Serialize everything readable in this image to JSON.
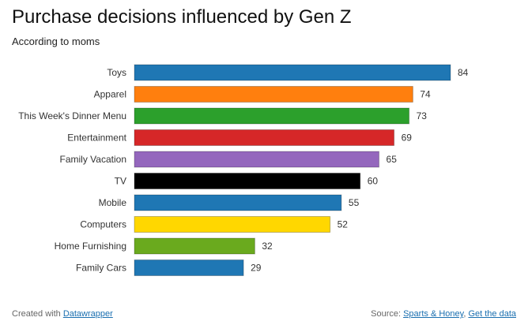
{
  "header": {
    "title": "Purchase decisions influenced by Gen Z",
    "subtitle": "According to moms"
  },
  "footer": {
    "created_prefix": "Created with ",
    "created_link": "Datawrapper",
    "source_prefix": "Source: ",
    "source_link": "Sparts & Honey",
    "separator": ", ",
    "data_link": "Get the data"
  },
  "chart_data": {
    "type": "bar",
    "orientation": "horizontal",
    "categories": [
      "Toys",
      "Apparel",
      "This Week's Dinner Menu",
      "Entertainment",
      "Family Vacation",
      "TV",
      "Mobile",
      "Computers",
      "Home Furnishing",
      "Family Cars"
    ],
    "values": [
      84,
      74,
      73,
      69,
      65,
      60,
      55,
      52,
      32,
      29
    ],
    "colors": [
      "#1f77b4",
      "#ff7f0e",
      "#2ca02c",
      "#d62728",
      "#9467bd",
      "#000000",
      "#1f77b4",
      "#ffd700",
      "#6aaa1e",
      "#1f77b4"
    ],
    "title": "Purchase decisions influenced by Gen Z",
    "subtitle": "According to moms",
    "xlabel": "",
    "ylabel": "",
    "xlim": [
      0,
      84
    ],
    "grid": false,
    "legend": "none"
  }
}
